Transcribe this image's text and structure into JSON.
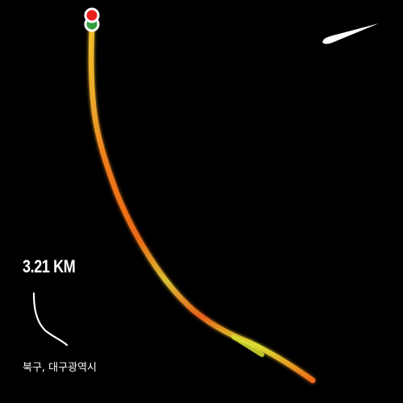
{
  "brand": {
    "logo_icon": "nike-swoosh-icon",
    "logo_color": "#ffffff"
  },
  "activity": {
    "distance": "3.21 KM",
    "location": "북구, 대구광역시"
  },
  "route": {
    "start_marker_color": "#2e9e3a",
    "end_marker_color": "#e8201c",
    "pace_colors": [
      "#f2c12e",
      "#f07a1a",
      "#d8e032"
    ]
  }
}
